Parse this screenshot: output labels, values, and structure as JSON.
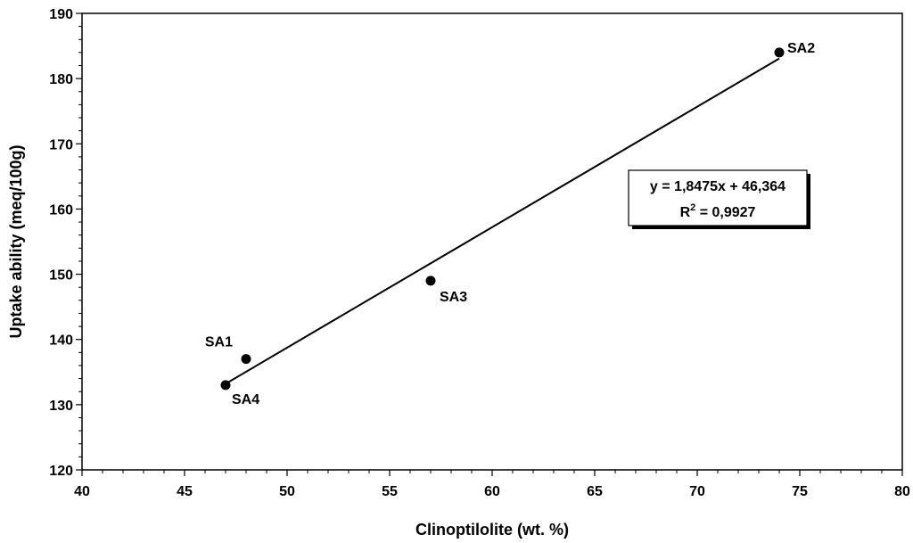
{
  "chart_data": {
    "type": "scatter",
    "xlabel": "Clinoptilolite (wt. %)",
    "ylabel": "Uptake ability (meq/100g)",
    "xlim": [
      40,
      80
    ],
    "ylim": [
      120,
      190
    ],
    "xticks": [
      40,
      45,
      50,
      55,
      60,
      65,
      70,
      75,
      80
    ],
    "yticks": [
      120,
      130,
      140,
      150,
      160,
      170,
      180,
      190
    ],
    "grid": false,
    "points": [
      {
        "label": "SA1",
        "x": 48,
        "y": 137
      },
      {
        "label": "SA2",
        "x": 74,
        "y": 184
      },
      {
        "label": "SA3",
        "x": 57,
        "y": 149
      },
      {
        "label": "SA4",
        "x": 47,
        "y": 133
      }
    ],
    "trendline": {
      "type": "linear",
      "slope": 1.8475,
      "intercept": 46.364,
      "x_range": [
        47,
        74
      ],
      "equation": "y = 1,8475x + 46,364",
      "r2_prefix": "R",
      "r2_exponent": "2",
      "r2_value": " = 0,9927"
    }
  }
}
